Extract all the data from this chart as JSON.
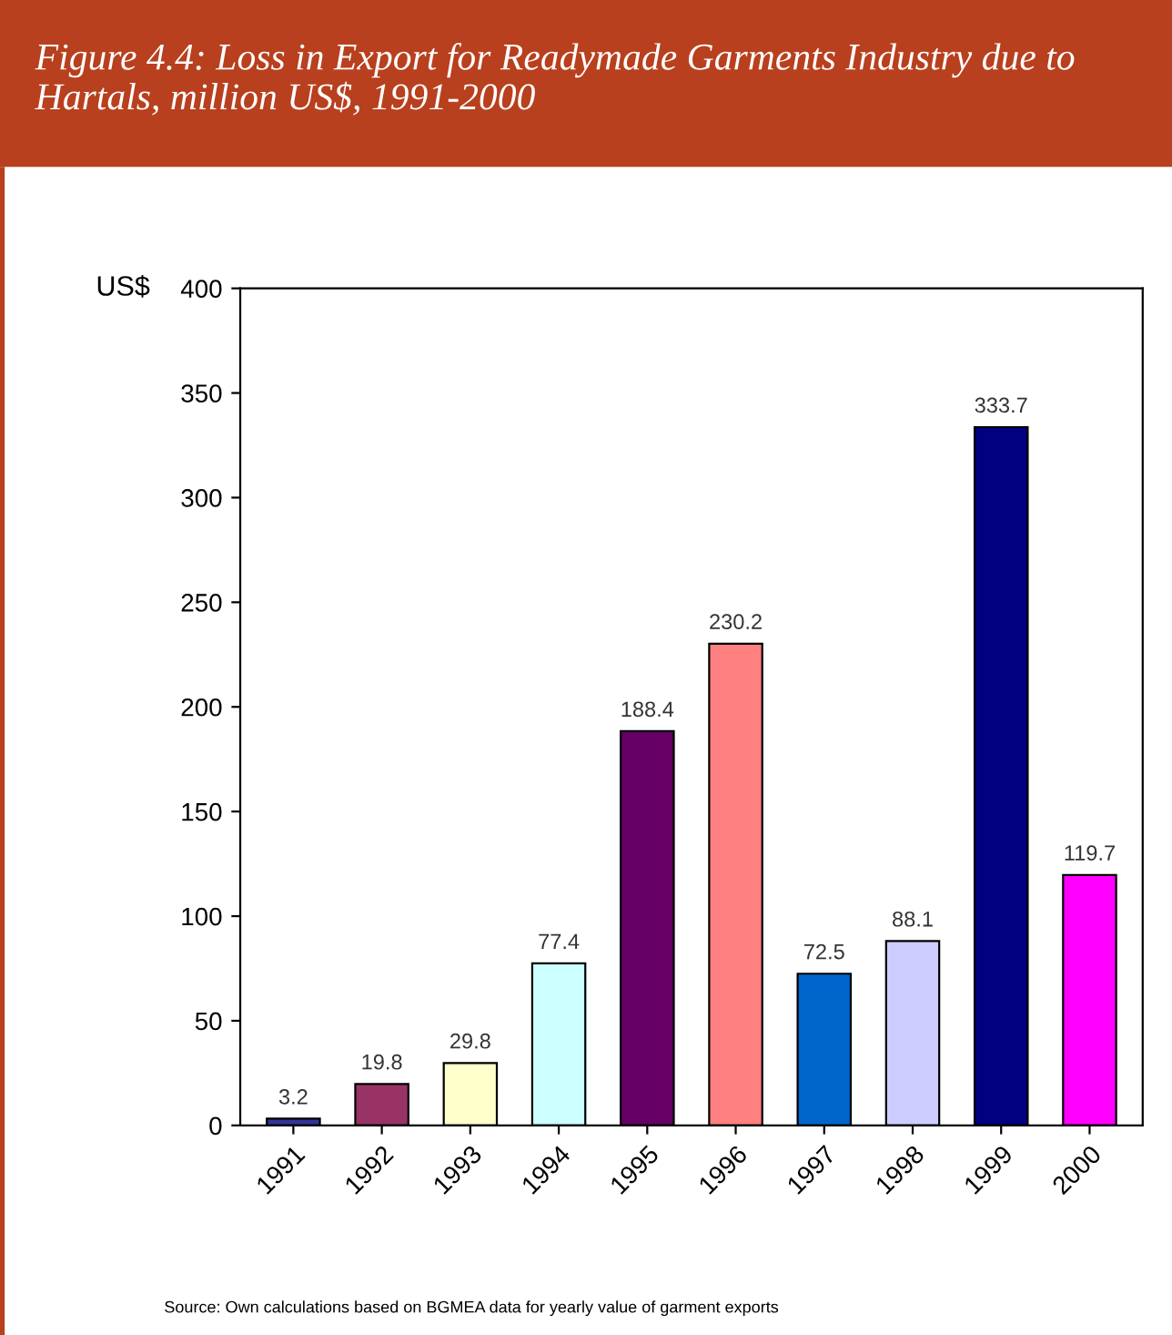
{
  "chart_data": {
    "type": "bar",
    "title": "Figure 4.4: Loss in Export for Readymade Garments Industry due to Hartals, million US$, 1991-2000",
    "ylabel": "US$",
    "categories": [
      "1991",
      "1992",
      "1993",
      "1994",
      "1995",
      "1996",
      "1997",
      "1998",
      "1999",
      "2000"
    ],
    "values": [
      3.2,
      19.8,
      29.8,
      77.4,
      188.4,
      230.2,
      72.5,
      88.1,
      333.7,
      119.7
    ],
    "colors": [
      "#333399",
      "#993366",
      "#ffffcc",
      "#ccffff",
      "#660066",
      "#ff8080",
      "#0066cc",
      "#ccccff",
      "#000080",
      "#ff00ff"
    ],
    "ylim": [
      0,
      400
    ],
    "yticks": [
      0,
      50,
      100,
      150,
      200,
      250,
      300,
      350,
      400
    ],
    "grid": false,
    "data_labels": true,
    "legend": false,
    "annotations": [
      "Source: Own calculations based on BGMEA data for yearly value of garment exports"
    ]
  }
}
